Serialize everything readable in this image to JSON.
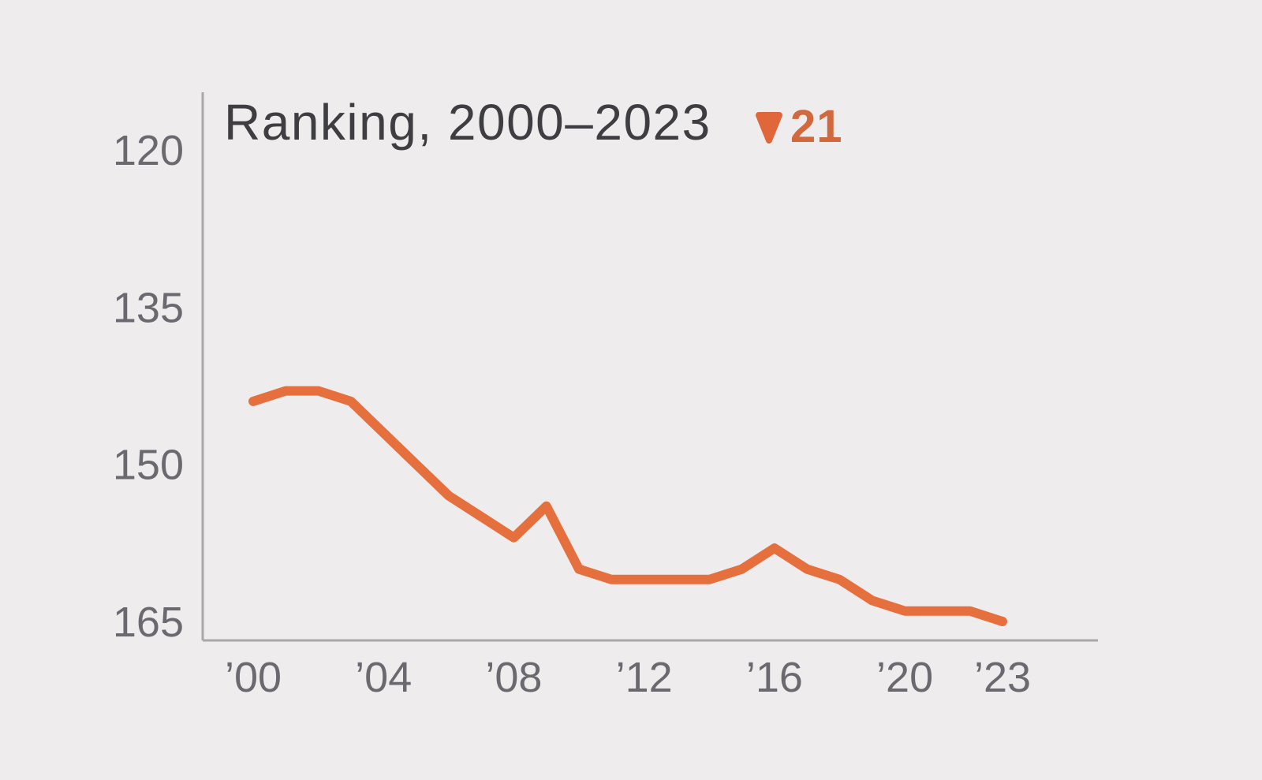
{
  "page": {
    "background_color": "#EEECEC"
  },
  "chart_data": {
    "type": "line",
    "title": "Ranking, 2000–2023",
    "series_name": "Ranking",
    "change_indicator": {
      "direction": "down",
      "value": "21",
      "icon": "triangle-down-icon",
      "arrow_color": "#E0673A",
      "value_color": "#D2693E"
    },
    "x": [
      2000,
      2001,
      2002,
      2003,
      2004,
      2005,
      2006,
      2007,
      2008,
      2009,
      2010,
      2011,
      2012,
      2013,
      2014,
      2015,
      2016,
      2017,
      2018,
      2019,
      2020,
      2021,
      2022,
      2023
    ],
    "values": [
      144,
      143,
      143,
      144,
      147,
      150,
      153,
      155,
      157,
      154,
      160,
      161,
      161,
      161,
      161,
      160,
      158,
      160,
      161,
      163,
      164,
      164,
      164,
      165
    ],
    "y_axis": {
      "ticks": [
        120,
        135,
        150,
        165
      ],
      "inverted": true,
      "range": [
        120,
        165
      ]
    },
    "x_axis": {
      "ticks": [
        {
          "year": 2000,
          "label": "’00"
        },
        {
          "year": 2004,
          "label": "’04"
        },
        {
          "year": 2008,
          "label": "’08"
        },
        {
          "year": 2012,
          "label": "’12"
        },
        {
          "year": 2016,
          "label": "’16"
        },
        {
          "year": 2020,
          "label": "’20"
        },
        {
          "year": 2023,
          "label": "’23"
        }
      ]
    },
    "grid": false,
    "legend_position": "none",
    "line_color": "#E66F3E",
    "line_width": 12,
    "axis_line_color": "#A9A7A7",
    "title_color": "#3E3D42",
    "tick_label_color": "#6B6970"
  }
}
